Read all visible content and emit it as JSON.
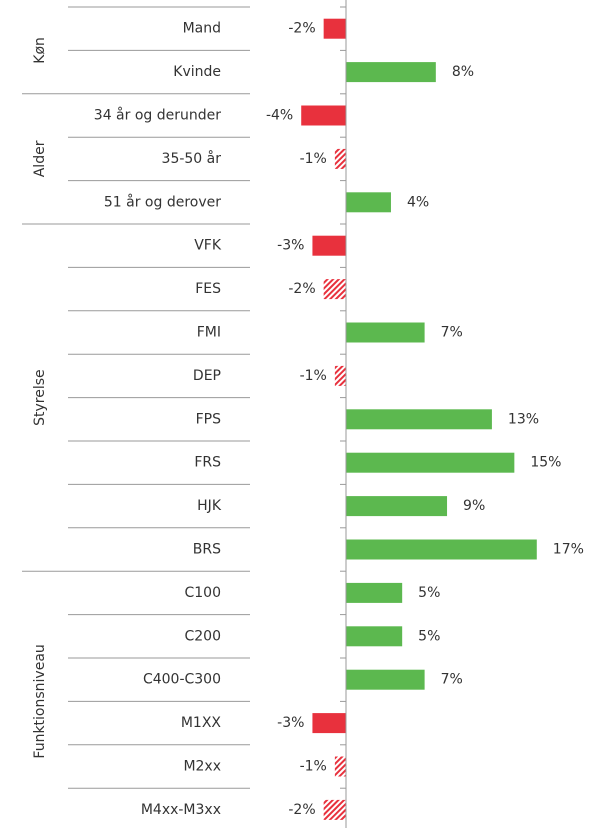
{
  "chart_data": {
    "type": "bar",
    "orientation": "horizontal",
    "positive_color": "#5cb84f",
    "negative_color": "#e8313d",
    "xlim": [
      -5,
      18
    ],
    "groups": [
      {
        "name": "Køn",
        "categories": [
          "Mand",
          "Kvinde"
        ],
        "values": [
          -2,
          8
        ],
        "value_labels": [
          "-2%",
          "8%"
        ],
        "significant": [
          true,
          true
        ]
      },
      {
        "name": "Alder",
        "categories": [
          "34 år og derunder",
          "35-50 år",
          "51 år og derover"
        ],
        "values": [
          -4,
          -1,
          4
        ],
        "value_labels": [
          "-4%",
          "-1%",
          "4%"
        ],
        "significant": [
          true,
          false,
          true
        ]
      },
      {
        "name": "Styrelse",
        "categories": [
          "VFK",
          "FES",
          "FMI",
          "DEP",
          "FPS",
          "FRS",
          "HJK",
          "BRS"
        ],
        "values": [
          -3,
          -2,
          7,
          -1,
          13,
          15,
          9,
          17
        ],
        "value_labels": [
          "-3%",
          "-2%",
          "7%",
          "-1%",
          "13%",
          "15%",
          "9%",
          "17%"
        ],
        "significant": [
          true,
          false,
          true,
          false,
          true,
          true,
          true,
          true
        ]
      },
      {
        "name": "Funktionsniveau",
        "categories": [
          "C100",
          "C200",
          "C400-C300",
          "M1XX",
          "M2xx",
          "M4xx-M3xx"
        ],
        "values": [
          5,
          5,
          7,
          -3,
          -1,
          -2
        ],
        "value_labels": [
          "5%",
          "5%",
          "7%",
          "-3%",
          "-1%",
          "-2%"
        ],
        "significant": [
          true,
          true,
          true,
          true,
          false,
          false
        ]
      }
    ]
  }
}
